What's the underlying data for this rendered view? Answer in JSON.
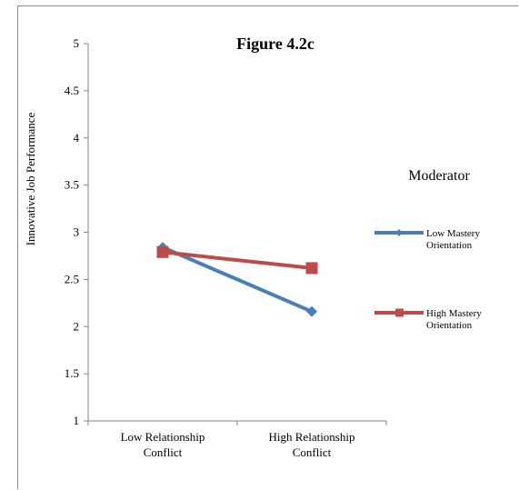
{
  "chart_data": {
    "type": "line",
    "title": "Figure 4.2c",
    "ylabel": "Innovative Job Performance",
    "xlabel": "",
    "categories": [
      [
        "Low Relationship",
        "Conflict"
      ],
      [
        "High Relationship",
        "Conflict"
      ]
    ],
    "ylim": [
      1,
      5
    ],
    "yticks": [
      "1",
      "1.5",
      "2",
      "2.5",
      "3",
      "3.5",
      "4",
      "4.5",
      "5"
    ],
    "grid": false,
    "legend_title": "Moderator",
    "legend_position": "right",
    "series": [
      {
        "name": [
          "Low Mastery",
          "Orientation"
        ],
        "values": [
          2.84,
          2.16
        ],
        "color": "#4a7ebb",
        "marker": "diamond"
      },
      {
        "name": [
          "High Mastery",
          "Orientation"
        ],
        "values": [
          2.79,
          2.62
        ],
        "color": "#be4b48",
        "marker": "square"
      }
    ]
  }
}
